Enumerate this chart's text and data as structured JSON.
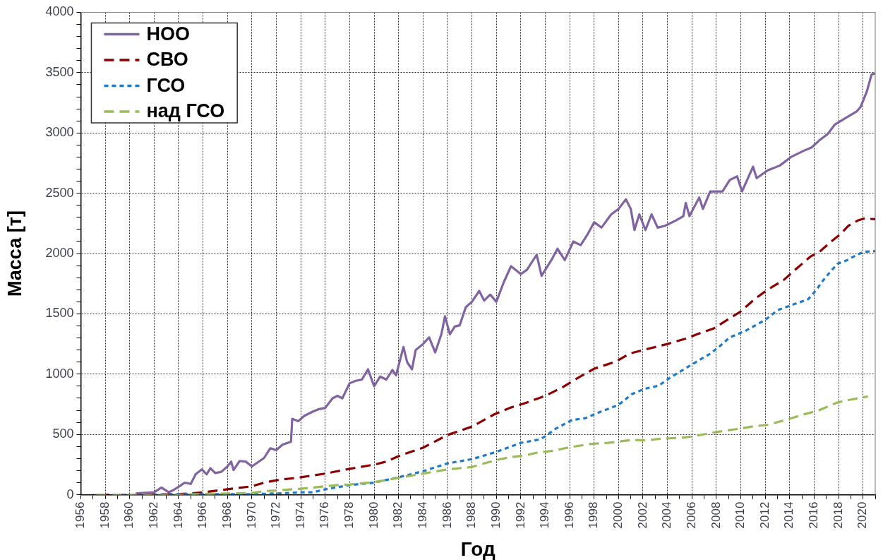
{
  "chart_data": {
    "type": "line",
    "xlabel": "Год",
    "ylabel": "Масса [т]",
    "xlim": [
      1956,
      2021
    ],
    "xticks": [
      1956,
      {
        "value": 1957,
        "label": null
      },
      1958,
      {
        "value": 1959,
        "label": null
      },
      1960,
      {
        "value": 1961,
        "label": null
      },
      1962,
      {
        "value": 1963,
        "label": null
      },
      1964,
      {
        "value": 1965,
        "label": null
      },
      1966,
      {
        "value": 1967,
        "label": null
      },
      1968,
      {
        "value": 1969,
        "label": null
      },
      1970,
      {
        "value": 1971,
        "label": null
      },
      1972,
      {
        "value": 1973,
        "label": null
      },
      1974,
      {
        "value": 1975,
        "label": null
      },
      1976,
      {
        "value": 1977,
        "label": null
      },
      1978,
      {
        "value": 1979,
        "label": null
      },
      1980,
      {
        "value": 1981,
        "label": null
      },
      1982,
      {
        "value": 1983,
        "label": null
      },
      1984,
      {
        "value": 1985,
        "label": null
      },
      1986,
      {
        "value": 1987,
        "label": null
      },
      1988,
      {
        "value": 1989,
        "label": null
      },
      1990,
      {
        "value": 1991,
        "label": null
      },
      1992,
      {
        "value": 1993,
        "label": null
      },
      1994,
      {
        "value": 1995,
        "label": null
      },
      1996,
      {
        "value": 1997,
        "label": null
      },
      1998,
      {
        "value": 1999,
        "label": null
      },
      2000,
      {
        "value": 2001,
        "label": null
      },
      2002,
      {
        "value": 2003,
        "label": null
      },
      2004,
      {
        "value": 2005,
        "label": null
      },
      2006,
      {
        "value": 2007,
        "label": null
      },
      2008,
      {
        "value": 2009,
        "label": null
      },
      2010,
      {
        "value": 2011,
        "label": null
      },
      2012,
      {
        "value": 2013,
        "label": null
      },
      2014,
      {
        "value": 2015,
        "label": null
      },
      2016,
      {
        "value": 2017,
        "label": null
      },
      2018,
      {
        "value": 2019,
        "label": null
      },
      2020,
      {
        "value": 2021,
        "label": null
      }
    ],
    "ylim": [
      0,
      4000
    ],
    "yticks": [
      0,
      {
        "value": 100,
        "label": null
      },
      {
        "value": 200,
        "label": null
      },
      {
        "value": 300,
        "label": null
      },
      {
        "value": 400,
        "label": null
      },
      500,
      {
        "value": 600,
        "label": null
      },
      {
        "value": 700,
        "label": null
      },
      {
        "value": 800,
        "label": null
      },
      {
        "value": 900,
        "label": null
      },
      1000,
      {
        "value": 1100,
        "label": null
      },
      {
        "value": 1200,
        "label": null
      },
      {
        "value": 1300,
        "label": null
      },
      {
        "value": 1400,
        "label": null
      },
      1500,
      {
        "value": 1600,
        "label": null
      },
      {
        "value": 1700,
        "label": null
      },
      {
        "value": 1800,
        "label": null
      },
      {
        "value": 1900,
        "label": null
      },
      2000,
      {
        "value": 2100,
        "label": null
      },
      {
        "value": 2200,
        "label": null
      },
      {
        "value": 2300,
        "label": null
      },
      {
        "value": 2400,
        "label": null
      },
      2500,
      {
        "value": 2600,
        "label": null
      },
      {
        "value": 2700,
        "label": null
      },
      {
        "value": 2800,
        "label": null
      },
      {
        "value": 2900,
        "label": null
      },
      3000,
      {
        "value": 3100,
        "label": null
      },
      {
        "value": 3200,
        "label": null
      },
      {
        "value": 3300,
        "label": null
      },
      {
        "value": 3400,
        "label": null
      },
      3500,
      {
        "value": 3600,
        "label": null
      },
      {
        "value": 3700,
        "label": null
      },
      {
        "value": 3800,
        "label": null
      },
      {
        "value": 3900,
        "label": null
      },
      4000
    ],
    "grid": true,
    "legend": "top left",
    "marker": "none",
    "series": [
      {
        "name": "НОО",
        "color": "#8064a2",
        "line_style": "solid",
        "x": [
          1960.5,
          1961,
          1962,
          1962.6,
          1963.2,
          1963.6,
          1964,
          1964.5,
          1965,
          1965.4,
          1965.9,
          1966.3,
          1966.6,
          1967,
          1967.5,
          1968,
          1968.3,
          1968.5,
          1969,
          1969.5,
          1970,
          1970.5,
          1971,
          1971.5,
          1972,
          1972.5,
          1973.2,
          1973.3,
          1973.8,
          1974.3,
          1975,
          1975.5,
          1976,
          1976.6,
          1977,
          1977.4,
          1978,
          1978.5,
          1979,
          1979.5,
          1980,
          1980.5,
          1981,
          1981.5,
          1981.8,
          1982,
          1982.4,
          1982.7,
          1983.1,
          1983.4,
          1984,
          1984.5,
          1985,
          1985.5,
          1985.8,
          1986.2,
          1986.6,
          1987,
          1987.5,
          1988,
          1988.6,
          1989,
          1989.5,
          1990,
          1990.6,
          1991.2,
          1992,
          1992.5,
          1993.3,
          1993.7,
          1994.5,
          1995,
          1995.6,
          1996.3,
          1996.9,
          1997.5,
          1998,
          1998.6,
          1999.4,
          2000,
          2000.6,
          2001,
          2001.3,
          2001.7,
          2002.2,
          2002.7,
          2003.2,
          2003.8,
          2004.7,
          2005.3,
          2005.5,
          2005.8,
          2006.6,
          2006.9,
          2007.5,
          2008.5,
          2009.1,
          2009.7,
          2010.1,
          2011,
          2011.3,
          2012.2,
          2013.2,
          2014.1,
          2015.1,
          2015.8,
          2016.5,
          2017.1,
          2017.7,
          2018.5,
          2019.5,
          2019.8,
          2020.3,
          2020.7,
          2021
        ],
        "values": [
          10,
          15,
          20,
          60,
          20,
          40,
          65,
          100,
          90,
          170,
          210,
          170,
          220,
          180,
          190,
          235,
          275,
          205,
          280,
          275,
          235,
          270,
          305,
          385,
          370,
          415,
          440,
          630,
          610,
          655,
          690,
          710,
          720,
          800,
          820,
          800,
          925,
          945,
          955,
          1040,
          900,
          980,
          955,
          1035,
          990,
          1070,
          1225,
          1100,
          1040,
          1200,
          1250,
          1305,
          1180,
          1330,
          1480,
          1330,
          1395,
          1405,
          1555,
          1600,
          1690,
          1610,
          1660,
          1600,
          1760,
          1895,
          1830,
          1865,
          1990,
          1815,
          1945,
          2040,
          1945,
          2100,
          2070,
          2165,
          2260,
          2215,
          2325,
          2370,
          2450,
          2370,
          2195,
          2325,
          2195,
          2325,
          2215,
          2230,
          2275,
          2310,
          2420,
          2310,
          2465,
          2370,
          2515,
          2515,
          2610,
          2640,
          2515,
          2720,
          2625,
          2690,
          2730,
          2800,
          2850,
          2880,
          2945,
          2990,
          3070,
          3120,
          3180,
          3215,
          3340,
          3485,
          3495
        ]
      },
      {
        "name": "СВО",
        "color": "#8b0000",
        "line_style": "dashed",
        "x": [
          1957,
          1960,
          1964,
          1965,
          1966,
          1968,
          1970,
          1971,
          1972,
          1974,
          1976,
          1978,
          1980,
          1981,
          1982,
          1984,
          1986,
          1987,
          1988,
          1989,
          1989.8,
          1991.1,
          1992.5,
          1994,
          1995.4,
          1996.7,
          1998,
          1999.8,
          2000.9,
          2002.2,
          2004,
          2005.5,
          2006.4,
          2007.8,
          2008.9,
          2010,
          2011.1,
          2012.2,
          2013.5,
          2014.5,
          2015.7,
          2016.5,
          2017.4,
          2018.2,
          2018.8,
          2019.6,
          2020.1,
          2021
        ],
        "values": [
          0,
          0,
          5,
          10,
          20,
          45,
          70,
          100,
          120,
          145,
          175,
          215,
          250,
          275,
          320,
          390,
          495,
          530,
          565,
          620,
          665,
          720,
          765,
          820,
          890,
          970,
          1045,
          1105,
          1170,
          1205,
          1250,
          1295,
          1330,
          1380,
          1450,
          1520,
          1620,
          1700,
          1780,
          1870,
          1975,
          2020,
          2100,
          2165,
          2230,
          2275,
          2290,
          2285
        ]
      },
      {
        "name": "ГСО",
        "color": "#1f7bc8",
        "line_style": "dotted",
        "x": [
          1958.5,
          1962,
          1964,
          1966,
          1968,
          1970,
          1972,
          1974,
          1975,
          1976,
          1978,
          1980,
          1982,
          1984,
          1986,
          1988,
          1990,
          1992,
          1993.6,
          1994,
          1994.9,
          1996.2,
          1997.3,
          1998.2,
          2000,
          2001.1,
          2002.2,
          2003.3,
          2004.2,
          2006,
          2007.5,
          2008.2,
          2009.1,
          2010.4,
          2012,
          2013,
          2014.2,
          2015.5,
          2016.2,
          2016.6,
          2017,
          2017.3,
          2017.9,
          2018.7,
          2019.5,
          2020.1,
          2021
        ],
        "values": [
          0,
          0,
          5,
          5,
          5,
          5,
          10,
          20,
          20,
          45,
          80,
          100,
          145,
          195,
          260,
          295,
          355,
          430,
          460,
          485,
          550,
          620,
          635,
          675,
          745,
          835,
          880,
          905,
          970,
          1080,
          1170,
          1225,
          1305,
          1360,
          1450,
          1530,
          1575,
          1620,
          1700,
          1760,
          1810,
          1845,
          1915,
          1945,
          1990,
          2015,
          2020
        ]
      },
      {
        "name": "над ГСО",
        "color": "#9bbb59",
        "line_style": "dashed",
        "x": [
          1957,
          1960,
          1964,
          1966,
          1968,
          1970,
          1971,
          1972,
          1974,
          1976,
          1977,
          1978,
          1980,
          1982,
          1984,
          1986,
          1987,
          1988,
          1989,
          1990.3,
          1991.4,
          1992.3,
          1993.4,
          1994.7,
          1995.8,
          1997.6,
          1999.1,
          2000,
          2001.1,
          2002.2,
          2003.5,
          2005.4,
          2006.4,
          2008,
          2009.7,
          2010.9,
          2012.2,
          2014,
          2015.1,
          2016.4,
          2017.9,
          2018.8,
          2020.4
        ],
        "values": [
          0,
          0,
          0,
          5,
          10,
          15,
          30,
          35,
          50,
          70,
          80,
          85,
          105,
          140,
          175,
          210,
          220,
          230,
          260,
          295,
          315,
          325,
          350,
          365,
          390,
          420,
          430,
          440,
          455,
          450,
          465,
          475,
          490,
          520,
          545,
          565,
          580,
          630,
          665,
          700,
          765,
          785,
          815
        ]
      }
    ]
  }
}
